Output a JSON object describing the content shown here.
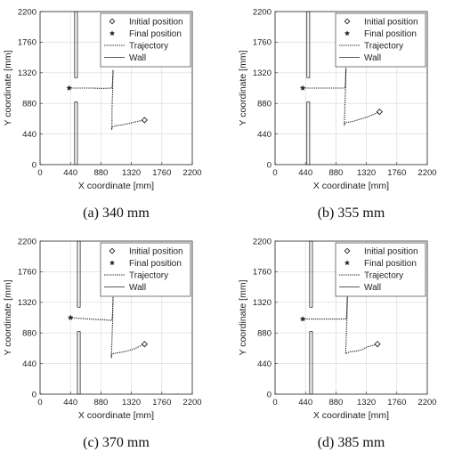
{
  "chart_data": [
    {
      "type": "line",
      "caption": "(a) 340 mm",
      "xlabel": "X coordinate [mm]",
      "ylabel": "Y coordinate [mm]",
      "xlim": [
        0,
        2200
      ],
      "ylim": [
        0,
        2200
      ],
      "xticks": [
        "0",
        "440",
        "880",
        "1320",
        "1760",
        "2200"
      ],
      "yticks": [
        "0",
        "440",
        "880",
        "1320",
        "1760",
        "2200"
      ],
      "grid": true,
      "legend_position": "top-right",
      "legend": [
        "Initial position",
        "Final position",
        "Trajectory",
        "Wall"
      ],
      "initial_position": [
        1510,
        640
      ],
      "final_position": [
        420,
        1100
      ],
      "trajectory": [
        [
          1510,
          640
        ],
        [
          1400,
          620
        ],
        [
          1280,
          590
        ],
        [
          1180,
          570
        ],
        [
          1100,
          560
        ],
        [
          1040,
          540
        ],
        [
          1035,
          500
        ],
        [
          1040,
          620
        ],
        [
          1040,
          800
        ],
        [
          1045,
          950
        ],
        [
          1050,
          1080
        ],
        [
          1050,
          1200
        ],
        [
          1055,
          1360
        ],
        [
          1050,
          1200
        ],
        [
          1040,
          1100
        ],
        [
          900,
          1095
        ],
        [
          750,
          1100
        ],
        [
          600,
          1100
        ],
        [
          420,
          1100
        ]
      ],
      "walls": [
        [
          [
            500,
            0
          ],
          [
            540,
            0
          ],
          [
            540,
            900
          ],
          [
            500,
            900
          ],
          [
            500,
            0
          ]
        ],
        [
          [
            500,
            1250
          ],
          [
            540,
            1250
          ],
          [
            540,
            2200
          ],
          [
            500,
            2200
          ],
          [
            500,
            1250
          ]
        ]
      ]
    },
    {
      "type": "line",
      "caption": "(b) 355 mm",
      "xlabel": "X coordinate [mm]",
      "ylabel": "Y coordinate [mm]",
      "xlim": [
        0,
        2200
      ],
      "ylim": [
        0,
        2200
      ],
      "xticks": [
        "0",
        "440",
        "880",
        "1320",
        "1760",
        "2200"
      ],
      "yticks": [
        "0",
        "440",
        "880",
        "1320",
        "1760",
        "2200"
      ],
      "grid": true,
      "legend_position": "top-right",
      "legend": [
        "Initial position",
        "Final position",
        "Trajectory",
        "Wall"
      ],
      "initial_position": [
        1510,
        760
      ],
      "final_position": [
        400,
        1100
      ],
      "trajectory": [
        [
          1510,
          760
        ],
        [
          1420,
          720
        ],
        [
          1320,
          680
        ],
        [
          1220,
          650
        ],
        [
          1120,
          620
        ],
        [
          1010,
          600
        ],
        [
          1000,
          560
        ],
        [
          1005,
          700
        ],
        [
          1010,
          860
        ],
        [
          1015,
          1000
        ],
        [
          1020,
          1100
        ],
        [
          1020,
          1250
        ],
        [
          1025,
          1390
        ],
        [
          1020,
          1200
        ],
        [
          1010,
          1100
        ],
        [
          850,
          1100
        ],
        [
          650,
          1100
        ],
        [
          400,
          1100
        ]
      ],
      "walls": [
        [
          [
            460,
            0
          ],
          [
            500,
            0
          ],
          [
            500,
            900
          ],
          [
            460,
            900
          ],
          [
            460,
            0
          ]
        ],
        [
          [
            460,
            1250
          ],
          [
            500,
            1250
          ],
          [
            500,
            2200
          ],
          [
            460,
            2200
          ],
          [
            460,
            1250
          ]
        ]
      ]
    },
    {
      "type": "line",
      "caption": "(c) 370 mm",
      "xlabel": "X coordinate [mm]",
      "ylabel": "Y coordinate [mm]",
      "xlim": [
        0,
        2200
      ],
      "ylim": [
        0,
        2200
      ],
      "xticks": [
        "0",
        "440",
        "880",
        "1320",
        "1760",
        "2200"
      ],
      "yticks": [
        "0",
        "440",
        "880",
        "1320",
        "1760",
        "2200"
      ],
      "grid": true,
      "legend_position": "top-right",
      "legend": [
        "Initial position",
        "Final position",
        "Trajectory",
        "Wall"
      ],
      "initial_position": [
        1510,
        720
      ],
      "final_position": [
        440,
        1100
      ],
      "trajectory": [
        [
          1510,
          720
        ],
        [
          1440,
          690
        ],
        [
          1360,
          650
        ],
        [
          1260,
          620
        ],
        [
          1160,
          600
        ],
        [
          1040,
          580
        ],
        [
          1030,
          520
        ],
        [
          1035,
          650
        ],
        [
          1040,
          800
        ],
        [
          1045,
          950
        ],
        [
          1050,
          1060
        ],
        [
          1050,
          1200
        ],
        [
          1055,
          1400
        ],
        [
          1050,
          1200
        ],
        [
          1040,
          1060
        ],
        [
          900,
          1070
        ],
        [
          700,
          1080
        ],
        [
          440,
          1100
        ]
      ],
      "walls": [
        [
          [
            540,
            0
          ],
          [
            580,
            0
          ],
          [
            580,
            900
          ],
          [
            540,
            900
          ],
          [
            540,
            0
          ]
        ],
        [
          [
            540,
            1250
          ],
          [
            580,
            1250
          ],
          [
            580,
            2200
          ],
          [
            540,
            2200
          ],
          [
            540,
            1250
          ]
        ]
      ]
    },
    {
      "type": "line",
      "caption": "(d) 385 mm",
      "xlabel": "X coordinate [mm]",
      "ylabel": "Y coordinate [mm]",
      "xlim": [
        0,
        2200
      ],
      "ylim": [
        0,
        2200
      ],
      "xticks": [
        "0",
        "440",
        "880",
        "1320",
        "1760",
        "2200"
      ],
      "yticks": [
        "0",
        "440",
        "880",
        "1320",
        "1760",
        "2200"
      ],
      "grid": true,
      "legend_position": "top-right",
      "legend": [
        "Initial position",
        "Final position",
        "Trajectory",
        "Wall"
      ],
      "initial_position": [
        1480,
        720
      ],
      "final_position": [
        400,
        1080
      ],
      "trajectory": [
        [
          1480,
          720
        ],
        [
          1410,
          700
        ],
        [
          1330,
          680
        ],
        [
          1260,
          640
        ],
        [
          1180,
          620
        ],
        [
          1080,
          610
        ],
        [
          1020,
          580
        ],
        [
          1025,
          700
        ],
        [
          1030,
          850
        ],
        [
          1035,
          1000
        ],
        [
          1040,
          1080
        ],
        [
          1040,
          1250
        ],
        [
          1045,
          1400
        ],
        [
          1040,
          1200
        ],
        [
          1030,
          1080
        ],
        [
          850,
          1080
        ],
        [
          650,
          1080
        ],
        [
          400,
          1080
        ]
      ],
      "walls": [
        [
          [
            500,
            0
          ],
          [
            540,
            0
          ],
          [
            540,
            900
          ],
          [
            500,
            900
          ],
          [
            500,
            0
          ]
        ],
        [
          [
            500,
            1250
          ],
          [
            540,
            1250
          ],
          [
            540,
            2200
          ],
          [
            500,
            2200
          ],
          [
            500,
            1250
          ]
        ]
      ]
    }
  ]
}
